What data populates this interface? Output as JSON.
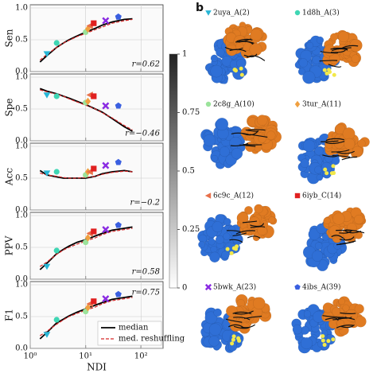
{
  "chart_data": [
    {
      "type": "line",
      "ylabel": "Sen",
      "annotation": "r=0.62",
      "xlim": [
        1,
        250
      ],
      "ylim": [
        0,
        1.05
      ],
      "log_x": true,
      "grid": true,
      "xticks": [
        {
          "value": 1,
          "label": "10⁰"
        },
        {
          "value": 10,
          "label": "10¹"
        },
        {
          "value": 100,
          "label": "10²"
        }
      ],
      "yticks": [
        {
          "value": 0,
          "label": "0.0"
        },
        0.5,
        {
          "value": 1,
          "label": "1.0"
        }
      ],
      "x": [
        1.5,
        2,
        3,
        4,
        5,
        7,
        10,
        15,
        20,
        30,
        50,
        70
      ],
      "series": [
        {
          "color": "#000000",
          "style": "solid",
          "values": [
            0.15,
            0.25,
            0.38,
            0.45,
            0.5,
            0.56,
            0.62,
            0.68,
            0.73,
            0.78,
            0.82,
            0.83
          ]
        },
        {
          "color": "#d62728",
          "style": "dashed",
          "values": [
            0.18,
            0.27,
            0.38,
            0.45,
            0.49,
            0.55,
            0.6,
            0.66,
            0.7,
            0.76,
            0.8,
            0.82
          ]
        }
      ],
      "highlights": {
        "x": [
          2,
          3,
          10,
          11,
          12,
          14,
          23,
          39
        ],
        "values": [
          0.28,
          0.45,
          0.62,
          0.67,
          0.72,
          0.76,
          0.8,
          0.86
        ]
      }
    },
    {
      "type": "line",
      "ylabel": "Spe",
      "annotation": "r=−0.46",
      "xlim": [
        1,
        250
      ],
      "ylim": [
        0,
        1.05
      ],
      "log_x": true,
      "grid": true,
      "xticks": [
        {
          "value": 1,
          "label": "10⁰"
        },
        {
          "value": 10,
          "label": "10¹"
        },
        {
          "value": 100,
          "label": "10²"
        }
      ],
      "yticks": [
        {
          "value": 0,
          "label": "0.0"
        },
        0.5,
        {
          "value": 1,
          "label": "1.0"
        }
      ],
      "x": [
        1.5,
        2,
        3,
        4,
        5,
        7,
        10,
        15,
        20,
        30,
        50,
        70
      ],
      "series": [
        {
          "color": "#000000",
          "style": "solid",
          "values": [
            0.82,
            0.78,
            0.74,
            0.7,
            0.67,
            0.62,
            0.57,
            0.5,
            0.45,
            0.35,
            0.22,
            0.15
          ]
        },
        {
          "color": "#d62728",
          "style": "dashed",
          "values": [
            0.8,
            0.77,
            0.73,
            0.7,
            0.66,
            0.61,
            0.56,
            0.5,
            0.44,
            0.36,
            0.24,
            0.17
          ]
        }
      ],
      "highlights": {
        "x": [
          2,
          3,
          10,
          11,
          12,
          14,
          23,
          39
        ],
        "values": [
          0.72,
          0.7,
          0.6,
          0.62,
          0.72,
          0.7,
          0.55,
          0.55
        ]
      }
    },
    {
      "type": "line",
      "ylabel": "Acc",
      "annotation": "r=−0.2",
      "xlim": [
        1,
        250
      ],
      "ylim": [
        0,
        1.05
      ],
      "log_x": true,
      "grid": true,
      "xticks": [
        {
          "value": 1,
          "label": "10⁰"
        },
        {
          "value": 10,
          "label": "10¹"
        },
        {
          "value": 100,
          "label": "10²"
        }
      ],
      "yticks": [
        {
          "value": 0,
          "label": "0.0"
        },
        0.5,
        {
          "value": 1,
          "label": "1.0"
        }
      ],
      "x": [
        1.5,
        2,
        3,
        4,
        5,
        7,
        10,
        15,
        20,
        30,
        50,
        70
      ],
      "series": [
        {
          "color": "#000000",
          "style": "solid",
          "values": [
            0.62,
            0.55,
            0.52,
            0.5,
            0.5,
            0.5,
            0.5,
            0.53,
            0.57,
            0.6,
            0.62,
            0.6
          ]
        },
        {
          "color": "#d62728",
          "style": "dashed",
          "values": [
            0.58,
            0.55,
            0.53,
            0.51,
            0.5,
            0.5,
            0.51,
            0.53,
            0.56,
            0.59,
            0.61,
            0.6
          ]
        }
      ],
      "highlights": {
        "x": [
          2,
          3,
          10,
          11,
          12,
          14,
          23,
          39
        ],
        "values": [
          0.58,
          0.6,
          0.55,
          0.6,
          0.6,
          0.65,
          0.7,
          0.75
        ]
      }
    },
    {
      "type": "line",
      "ylabel": "PPV",
      "annotation": "r=0.58",
      "xlim": [
        1,
        250
      ],
      "ylim": [
        0,
        1.05
      ],
      "log_x": true,
      "grid": true,
      "xticks": [
        {
          "value": 1,
          "label": "10⁰"
        },
        {
          "value": 10,
          "label": "10¹"
        },
        {
          "value": 100,
          "label": "10²"
        }
      ],
      "yticks": [
        {
          "value": 0,
          "label": "0.0"
        },
        0.5,
        {
          "value": 1,
          "label": "1.0"
        }
      ],
      "x": [
        1.5,
        2,
        3,
        4,
        5,
        7,
        10,
        15,
        20,
        30,
        50,
        70
      ],
      "series": [
        {
          "color": "#000000",
          "style": "solid",
          "values": [
            0.15,
            0.25,
            0.4,
            0.47,
            0.52,
            0.58,
            0.62,
            0.68,
            0.72,
            0.77,
            0.8,
            0.82
          ]
        },
        {
          "color": "#d62728",
          "style": "dashed",
          "values": [
            0.2,
            0.27,
            0.39,
            0.46,
            0.5,
            0.55,
            0.6,
            0.65,
            0.7,
            0.75,
            0.78,
            0.8
          ]
        }
      ],
      "highlights": {
        "x": [
          2,
          3,
          10,
          11,
          12,
          14,
          23,
          39
        ],
        "values": [
          0.2,
          0.45,
          0.58,
          0.65,
          0.72,
          0.75,
          0.78,
          0.85
        ]
      }
    },
    {
      "type": "line",
      "ylabel": "F1",
      "xlabel": "NDI",
      "annotation": "r=0.75",
      "xlim": [
        1,
        250
      ],
      "ylim": [
        0,
        1.05
      ],
      "log_x": true,
      "grid": true,
      "legend": "lower right",
      "xticks": [
        {
          "value": 1,
          "label": "10⁰"
        },
        {
          "value": 10,
          "label": "10¹"
        },
        {
          "value": 100,
          "label": "10²"
        }
      ],
      "yticks": [
        {
          "value": 0,
          "label": "0.0"
        },
        0.5,
        {
          "value": 1,
          "label": "1.0"
        }
      ],
      "x": [
        1.5,
        2,
        3,
        4,
        5,
        7,
        10,
        15,
        20,
        30,
        50,
        70
      ],
      "series": [
        {
          "name": "median",
          "color": "#000000",
          "style": "solid",
          "values": [
            0.15,
            0.25,
            0.4,
            0.46,
            0.51,
            0.57,
            0.62,
            0.68,
            0.72,
            0.77,
            0.8,
            0.82
          ]
        },
        {
          "name": "med. reshuffling",
          "color": "#d62728",
          "style": "dashed",
          "values": [
            0.2,
            0.27,
            0.38,
            0.45,
            0.5,
            0.55,
            0.6,
            0.65,
            0.7,
            0.75,
            0.78,
            0.8
          ]
        }
      ],
      "highlights": {
        "x": [
          2,
          3,
          10,
          11,
          12,
          14,
          23,
          39
        ],
        "values": [
          0.22,
          0.45,
          0.58,
          0.64,
          0.7,
          0.74,
          0.78,
          0.85
        ]
      }
    }
  ],
  "colorbar": {
    "ylim": [
      0,
      1
    ],
    "yticks": [
      0,
      0.25,
      0.5,
      0.75,
      1
    ]
  },
  "panel_b": {
    "letter": "b",
    "cells": [
      {
        "label": "2uya_A(2)",
        "color": "#29b6d6",
        "marker": "triangle-down"
      },
      {
        "label": "1d8h_A(3)",
        "color": "#3fd6b4",
        "marker": "circle"
      },
      {
        "label": "2c8g_A(10)",
        "color": "#9be39b",
        "marker": "circle"
      },
      {
        "label": "3tur_A(11)",
        "color": "#f0a040",
        "marker": "diamond"
      },
      {
        "label": "6c9c_A(12)",
        "color": "#e8704a",
        "marker": "triangle-left"
      },
      {
        "label": "6iyb_C(14)",
        "color": "#e02020",
        "marker": "square"
      },
      {
        "label": "5bwk_A(23)",
        "color": "#8a2be2",
        "marker": "x"
      },
      {
        "label": "4ibs_A(39)",
        "color": "#3a5fe0",
        "marker": "pentagon"
      }
    ]
  }
}
